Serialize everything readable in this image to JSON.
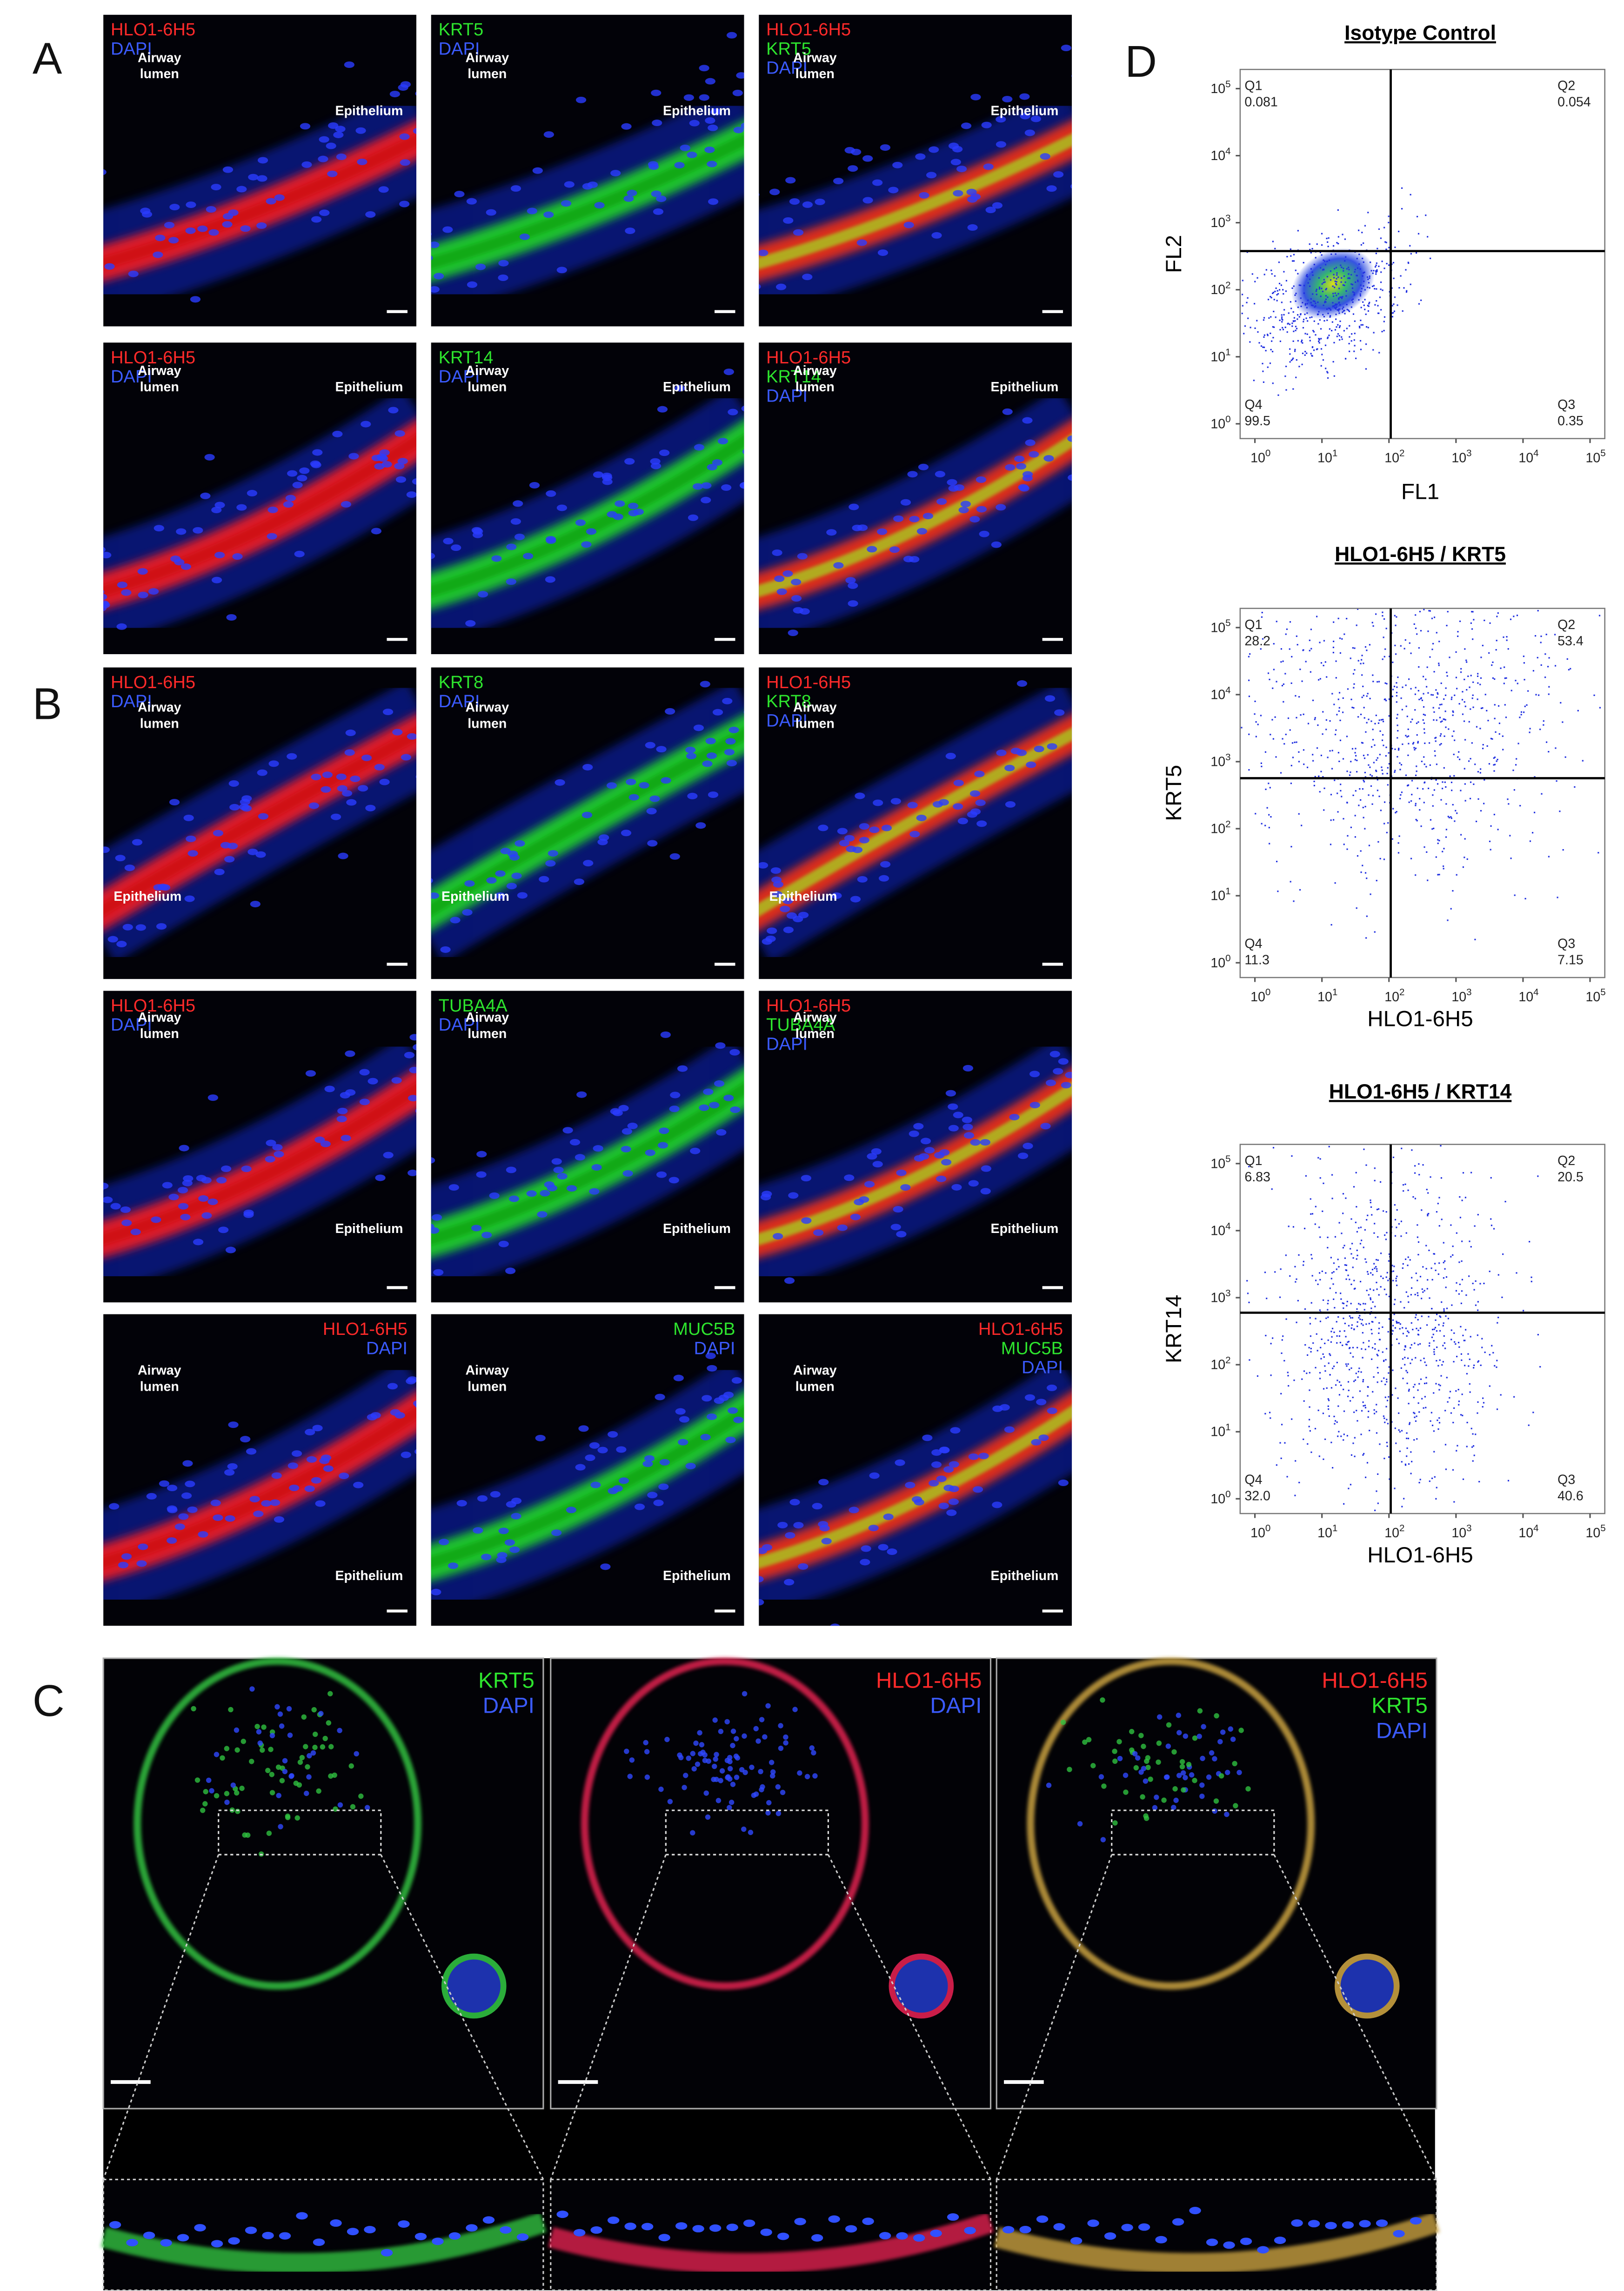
{
  "panel_labels": [
    "A",
    "B",
    "C",
    "D"
  ],
  "tiles": [
    {
      "stains": [
        {
          "text": "HLO1-6H5",
          "color": "#ff2a2a"
        },
        {
          "text": "DAPI",
          "color": "#3b5bff"
        }
      ],
      "lumen": [
        "Airway",
        "lumen"
      ],
      "epithelium": "Epithelium"
    },
    {
      "stains": [
        {
          "text": "KRT5",
          "color": "#2ee52e"
        },
        {
          "text": "DAPI",
          "color": "#3b5bff"
        }
      ],
      "lumen": [
        "Airway",
        "lumen"
      ],
      "epithelium": "Epithelium"
    },
    {
      "stains": [
        {
          "text": "HLO1-6H5",
          "color": "#ff2a2a"
        },
        {
          "text": "KRT5",
          "color": "#2ee52e"
        },
        {
          "text": "DAPI",
          "color": "#3b5bff"
        }
      ],
      "lumen": [
        "Airway",
        "lumen"
      ],
      "epithelium": "Epithelium"
    },
    {
      "stains": [
        {
          "text": "HLO1-6H5",
          "color": "#ff2a2a"
        },
        {
          "text": "DAPI",
          "color": "#3b5bff"
        }
      ],
      "lumen": [
        "Airway",
        "lumen"
      ],
      "epithelium": "Epithelium"
    },
    {
      "stains": [
        {
          "text": "KRT14",
          "color": "#2ee52e"
        },
        {
          "text": "DAPI",
          "color": "#3b5bff"
        }
      ],
      "lumen": [
        "Airway",
        "lumen"
      ],
      "epithelium": "Epithelium"
    },
    {
      "stains": [
        {
          "text": "HLO1-6H5",
          "color": "#ff2a2a"
        },
        {
          "text": "KRT14",
          "color": "#2ee52e"
        },
        {
          "text": "DAPI",
          "color": "#3b5bff"
        }
      ],
      "lumen": [
        "Airway",
        "lumen"
      ],
      "epithelium": "Epithelium"
    },
    {
      "stains": [
        {
          "text": "HLO1-6H5",
          "color": "#ff2a2a"
        },
        {
          "text": "DAPI",
          "color": "#3b5bff"
        }
      ],
      "lumen": [
        "Airway",
        "lumen"
      ],
      "epithelium": "Epithelium"
    },
    {
      "stains": [
        {
          "text": "KRT8",
          "color": "#2ee52e"
        },
        {
          "text": "DAPI",
          "color": "#3b5bff"
        }
      ],
      "lumen": [
        "Airway",
        "lumen"
      ],
      "epithelium": "Epithelium"
    },
    {
      "stains": [
        {
          "text": "HLO1-6H5",
          "color": "#ff2a2a"
        },
        {
          "text": "KRT8",
          "color": "#2ee52e"
        },
        {
          "text": "DAPI",
          "color": "#3b5bff"
        }
      ],
      "lumen": [
        "Airway",
        "lumen"
      ],
      "epithelium": "Epithelium"
    },
    {
      "stains": [
        {
          "text": "HLO1-6H5",
          "color": "#ff2a2a"
        },
        {
          "text": "DAPI",
          "color": "#3b5bff"
        }
      ],
      "lumen": [
        "Airway",
        "lumen"
      ],
      "epithelium": "Epithelium"
    },
    {
      "stains": [
        {
          "text": "TUBA4A",
          "color": "#2ee52e"
        },
        {
          "text": "DAPI",
          "color": "#3b5bff"
        }
      ],
      "lumen": [
        "Airway",
        "lumen"
      ],
      "epithelium": "Epithelium"
    },
    {
      "stains": [
        {
          "text": "HLO1-6H5",
          "color": "#ff2a2a"
        },
        {
          "text": "TUBA4A",
          "color": "#2ee52e"
        },
        {
          "text": "DAPI",
          "color": "#3b5bff"
        }
      ],
      "lumen": [
        "Airway",
        "lumen"
      ],
      "epithelium": "Epithelium"
    },
    {
      "stains": [
        {
          "text": "HLO1-6H5",
          "color": "#ff2a2a"
        },
        {
          "text": "DAPI",
          "color": "#3b5bff"
        }
      ],
      "lumen": [
        "Airway",
        "lumen"
      ],
      "epithelium": "Epithelium"
    },
    {
      "stains": [
        {
          "text": "MUC5B",
          "color": "#2ee52e"
        },
        {
          "text": "DAPI",
          "color": "#3b5bff"
        }
      ],
      "lumen": [
        "Airway",
        "lumen"
      ],
      "epithelium": "Epithelium"
    },
    {
      "stains": [
        {
          "text": "HLO1-6H5",
          "color": "#ff2a2a"
        },
        {
          "text": "MUC5B",
          "color": "#2ee52e"
        },
        {
          "text": "DAPI",
          "color": "#3b5bff"
        }
      ],
      "lumen": [
        "Airway",
        "lumen"
      ],
      "epithelium": "Epithelium"
    }
  ],
  "organoids": [
    {
      "stains": [
        {
          "text": "KRT5",
          "color": "#2ee52e"
        },
        {
          "text": "DAPI",
          "color": "#3b5bff"
        }
      ]
    },
    {
      "stains": [
        {
          "text": "HLO1-6H5",
          "color": "#ff2a2a"
        },
        {
          "text": "DAPI",
          "color": "#3b5bff"
        }
      ]
    },
    {
      "stains": [
        {
          "text": "HLO1-6H5",
          "color": "#ff2a2a"
        },
        {
          "text": "KRT5",
          "color": "#2ee52e"
        },
        {
          "text": "DAPI",
          "color": "#3b5bff"
        }
      ]
    }
  ],
  "flow": {
    "ticks": [
      {
        "base": "10",
        "exp": "0"
      },
      {
        "base": "10",
        "exp": "1"
      },
      {
        "base": "10",
        "exp": "2"
      },
      {
        "base": "10",
        "exp": "3"
      },
      {
        "base": "10",
        "exp": "4"
      },
      {
        "base": "10",
        "exp": "5"
      }
    ],
    "plots": [
      {
        "title": "Isotype Control",
        "xlabel": "FL1",
        "ylabel": "FL2",
        "quadrants": [
          {
            "name": "Q1",
            "value": "0.081"
          },
          {
            "name": "Q2",
            "value": "0.054"
          },
          {
            "name": "Q3",
            "value": "0.35"
          },
          {
            "name": "Q4",
            "value": "99.5"
          }
        ]
      },
      {
        "title": "HLO1-6H5 / KRT5",
        "xlabel": "HLO1-6H5",
        "ylabel": "KRT5",
        "quadrants": [
          {
            "name": "Q1",
            "value": "28.2"
          },
          {
            "name": "Q2",
            "value": "53.4"
          },
          {
            "name": "Q3",
            "value": "7.15"
          },
          {
            "name": "Q4",
            "value": "11.3"
          }
        ]
      },
      {
        "title": "HLO1-6H5 / KRT14",
        "xlabel": "HLO1-6H5",
        "ylabel": "KRT14",
        "quadrants": [
          {
            "name": "Q1",
            "value": "6.83"
          },
          {
            "name": "Q2",
            "value": "20.5"
          },
          {
            "name": "Q3",
            "value": "40.6"
          },
          {
            "name": "Q4",
            "value": "32.0"
          }
        ]
      }
    ]
  }
}
